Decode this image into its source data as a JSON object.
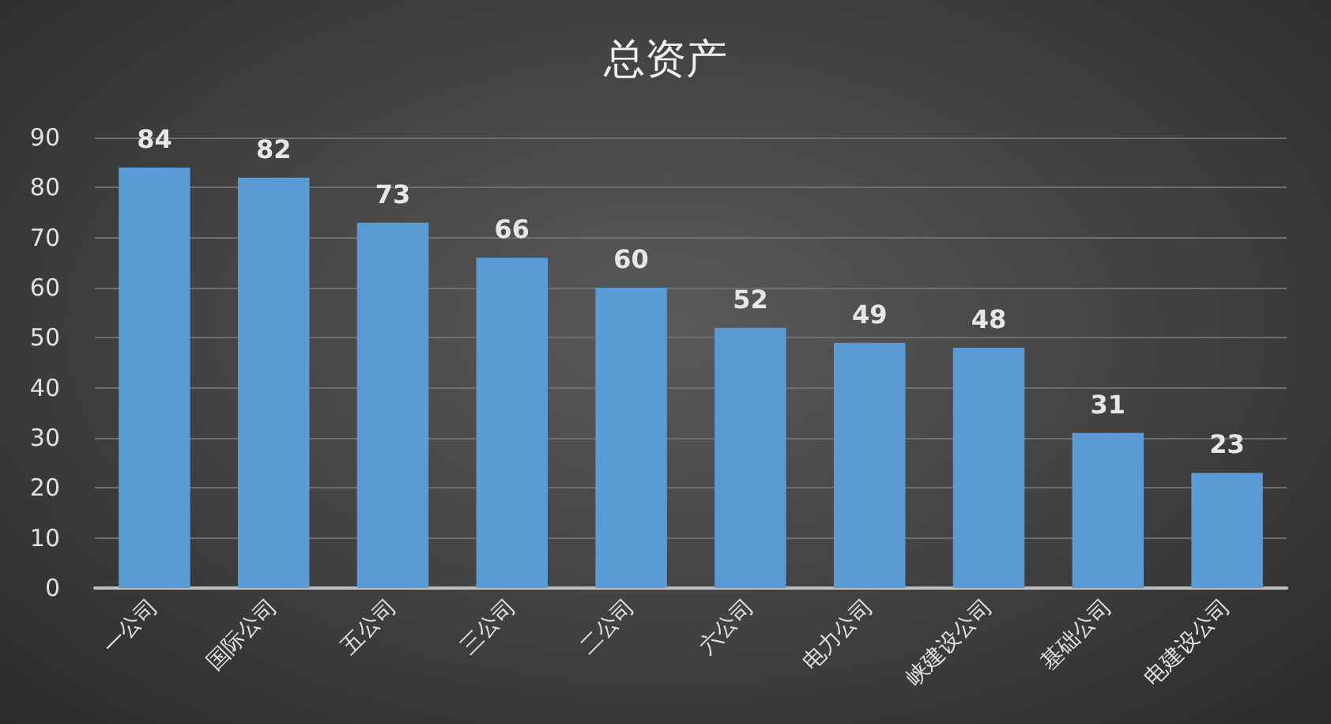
{
  "chart_data": {
    "type": "bar",
    "title": "总资产",
    "categories": [
      "一公司",
      "国际公司",
      "五公司",
      "三公司",
      "二公司",
      "六公司",
      "电力公司",
      "峡建设公司",
      "基础公司",
      "电建设公司"
    ],
    "values": [
      84,
      82,
      73,
      66,
      60,
      52,
      49,
      48,
      31,
      23
    ],
    "color": "#5b9bd5",
    "ylim": [
      0,
      90
    ],
    "yticks": [
      0,
      10,
      20,
      30,
      40,
      50,
      60,
      70,
      80,
      90
    ],
    "grid": "y",
    "data_labels": true
  }
}
